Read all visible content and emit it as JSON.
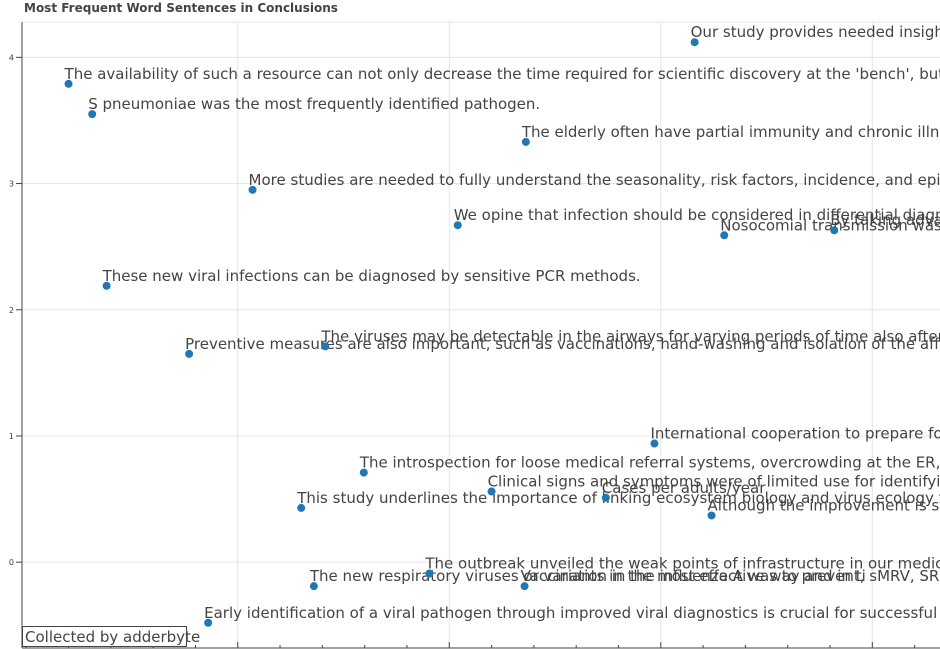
{
  "chart_data": {
    "type": "scatter",
    "title": "Most Frequent Word Sentences in Conclusions",
    "xlabel": "",
    "ylabel": "",
    "xlim": [
      -1.1,
      20.6
    ],
    "ylim": [
      -0.68,
      4.28
    ],
    "ytick_labels": [
      "0",
      "1",
      "2",
      "3",
      "4"
    ],
    "y_ticks": [
      0,
      1,
      2,
      3,
      4
    ],
    "x_major_ticks": [
      4,
      9,
      14,
      19
    ],
    "x_minor_ticks": [
      -1,
      0,
      1,
      2,
      3,
      5,
      6,
      7,
      8,
      10,
      11,
      12,
      13,
      15,
      16,
      17,
      18,
      20
    ],
    "point_color": "#1f77b4",
    "points": [
      {
        "x": 14.8,
        "y": 4.12,
        "label": "Our study provides needed insight into clinical"
      },
      {
        "x": 0.0,
        "y": 3.79,
        "label": "The availability of such a resource can not only decrease the time required for scientific discovery at the 'bench', but also aid in"
      },
      {
        "x": 0.56,
        "y": 3.55,
        "label": "S pneumoniae was the most frequently identified pathogen."
      },
      {
        "x": 10.81,
        "y": 3.33,
        "label": "The elderly often have partial immunity and chronic illnesses;"
      },
      {
        "x": 4.35,
        "y": 2.95,
        "label": "More studies are needed to fully understand the seasonality, risk factors, incidence, and epidemiolog"
      },
      {
        "x": 9.2,
        "y": 2.67,
        "label": "We opine that infection should be considered in differential diagnosis of"
      },
      {
        "x": 15.5,
        "y": 2.59,
        "label": "Nosocomial transmission was one of the"
      },
      {
        "x": 18.1,
        "y": 2.63,
        "label": "By taking advantage of"
      },
      {
        "x": 0.9,
        "y": 2.19,
        "label": "These new viral infections can be diagnosed by sensitive PCR methods."
      },
      {
        "x": 2.85,
        "y": 1.65,
        "label": "Preventive measures are also important, such as vaccinations, hand-washing and isolation of the affected indi"
      },
      {
        "x": 6.07,
        "y": 1.71,
        "label": "The viruses may be detectable in the airways for varying periods of time also after the acut"
      },
      {
        "x": 13.85,
        "y": 0.94,
        "label": "International cooperation to prepare for and defea"
      },
      {
        "x": 6.98,
        "y": 0.71,
        "label": "The introspection for loose medical referral systems, overcrowding at the ER, a lack o"
      },
      {
        "x": 10.0,
        "y": 0.56,
        "label": "Clinical signs and symptoms were of limited use for identifying patie"
      },
      {
        "x": 12.7,
        "y": 0.51,
        "label": "Cases per adults/year"
      },
      {
        "x": 5.5,
        "y": 0.43,
        "label": "This study underlines the importance of linking ecosystem biology and virus ecology to unrave"
      },
      {
        "x": 15.2,
        "y": 0.37,
        "label": "Although the improvement is still ongoing"
      },
      {
        "x": 8.53,
        "y": -0.09,
        "label": "The outbreak unveiled the weak points of infrastructure in our medical syste"
      },
      {
        "x": 5.8,
        "y": -0.19,
        "label": "The new respiratory viruses or variants in the most effective way and in ti"
      },
      {
        "x": 10.78,
        "y": -0.19,
        "label": "Vaccination in the influenza A was to prevent, sMRV, SRES"
      },
      {
        "x": 3.3,
        "y": -0.48,
        "label": "Early identification of a viral pathogen through improved viral diagnostics is crucial for successful treatment"
      }
    ]
  },
  "credit": "Collected by adderbyte"
}
